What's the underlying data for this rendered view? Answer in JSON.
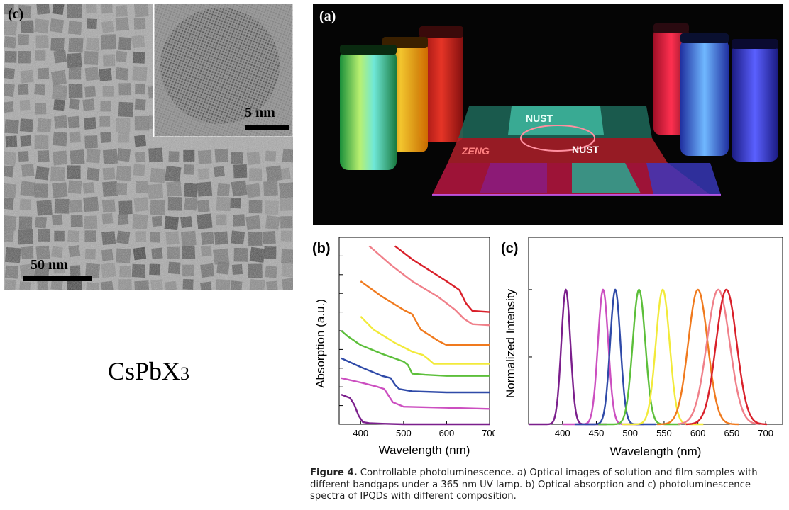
{
  "panels": {
    "tem_label": "(c)",
    "photo_label": "(a)",
    "abs_label": "(b)",
    "pl_label": "(c)"
  },
  "tem": {
    "inset_scale": "5 nm",
    "main_scale": "50 nm"
  },
  "formula": {
    "base": "CsPbX",
    "subscript": "3"
  },
  "photo": {
    "film_text_top": "NUST",
    "film_text_left": "ZENG",
    "film_text_right": "NUST"
  },
  "colors": {
    "purple": "#7b1f8c",
    "magenta": "#cc4fc0",
    "blue": "#2f4aa8",
    "green": "#5cbf3a",
    "yellow": "#f2ea3a",
    "orange": "#f07a1e",
    "pink": "#f0808a",
    "red": "#d9202a"
  },
  "chart_data": [
    {
      "type": "line",
      "panel": "b",
      "xlabel": "Wavelength (nm)",
      "ylabel": "Absorption (a.u.)",
      "xlim": [
        350,
        700
      ],
      "xticks": [
        400,
        500,
        600,
        700
      ],
      "ytick_labels": false,
      "series": [
        {
          "color": "#7b1f8c",
          "x": [
            355,
            375,
            385,
            395,
            405,
            420,
            450,
            500,
            600,
            700
          ],
          "y": [
            0.27,
            0.24,
            0.18,
            0.08,
            0.02,
            0.01,
            0.005,
            0.0,
            0.0,
            0.0
          ]
        },
        {
          "color": "#cc4fc0",
          "x": [
            355,
            400,
            440,
            455,
            465,
            475,
            500,
            600,
            700
          ],
          "y": [
            0.42,
            0.38,
            0.34,
            0.32,
            0.26,
            0.2,
            0.16,
            0.15,
            0.14
          ]
        },
        {
          "color": "#2f4aa8",
          "x": [
            355,
            400,
            450,
            470,
            480,
            490,
            520,
            600,
            700
          ],
          "y": [
            0.6,
            0.52,
            0.44,
            0.42,
            0.36,
            0.32,
            0.3,
            0.29,
            0.29
          ]
        },
        {
          "color": "#5cbf3a",
          "x": [
            355,
            370,
            400,
            450,
            500,
            510,
            520,
            550,
            600,
            700
          ],
          "y": [
            0.85,
            0.8,
            0.72,
            0.64,
            0.57,
            0.54,
            0.46,
            0.45,
            0.44,
            0.44
          ]
        },
        {
          "color": "#f2ea3a",
          "x": [
            400,
            430,
            480,
            520,
            545,
            555,
            570,
            600,
            700
          ],
          "y": [
            0.98,
            0.86,
            0.74,
            0.66,
            0.63,
            0.6,
            0.55,
            0.55,
            0.55
          ]
        },
        {
          "color": "#f07a1e",
          "x": [
            400,
            450,
            500,
            520,
            540,
            580,
            600,
            700
          ],
          "y": [
            1.3,
            1.16,
            1.04,
            1.0,
            0.86,
            0.76,
            0.72,
            0.72
          ]
        },
        {
          "color": "#f0808a",
          "x": [
            420,
            470,
            520,
            580,
            620,
            640,
            660,
            700
          ],
          "y": [
            1.62,
            1.45,
            1.3,
            1.16,
            1.04,
            0.96,
            0.91,
            0.9
          ]
        },
        {
          "color": "#d9202a",
          "x": [
            480,
            520,
            560,
            600,
            630,
            645,
            660,
            700
          ],
          "y": [
            1.62,
            1.5,
            1.4,
            1.3,
            1.22,
            1.1,
            1.03,
            1.02
          ]
        }
      ]
    },
    {
      "type": "line",
      "panel": "c",
      "xlabel": "Wavelength (nm)",
      "ylabel": "Normalized Intensity",
      "xlim": [
        350,
        725
      ],
      "xticks": [
        400,
        450,
        500,
        550,
        600,
        650,
        700
      ],
      "ytick_labels": false,
      "series": [
        {
          "color": "#7b1f8c",
          "peak": 405,
          "width": 8
        },
        {
          "color": "#cc4fc0",
          "peak": 460,
          "width": 9
        },
        {
          "color": "#2f4aa8",
          "peak": 478,
          "width": 9
        },
        {
          "color": "#5cbf3a",
          "peak": 513,
          "width": 11
        },
        {
          "color": "#f2ea3a",
          "peak": 548,
          "width": 12
        },
        {
          "color": "#f07a1e",
          "peak": 600,
          "width": 17
        },
        {
          "color": "#f0808a",
          "peak": 630,
          "width": 20
        },
        {
          "color": "#d9202a",
          "peak": 642,
          "width": 18
        }
      ]
    }
  ],
  "caption": {
    "label": "Figure 4.",
    "text": " Controllable photoluminescence. a) Optical images of solution and film samples with different bandgaps under a 365 nm UV lamp. b) Optical absorption and c) photoluminescence spectra of IPQDs with different composition."
  }
}
